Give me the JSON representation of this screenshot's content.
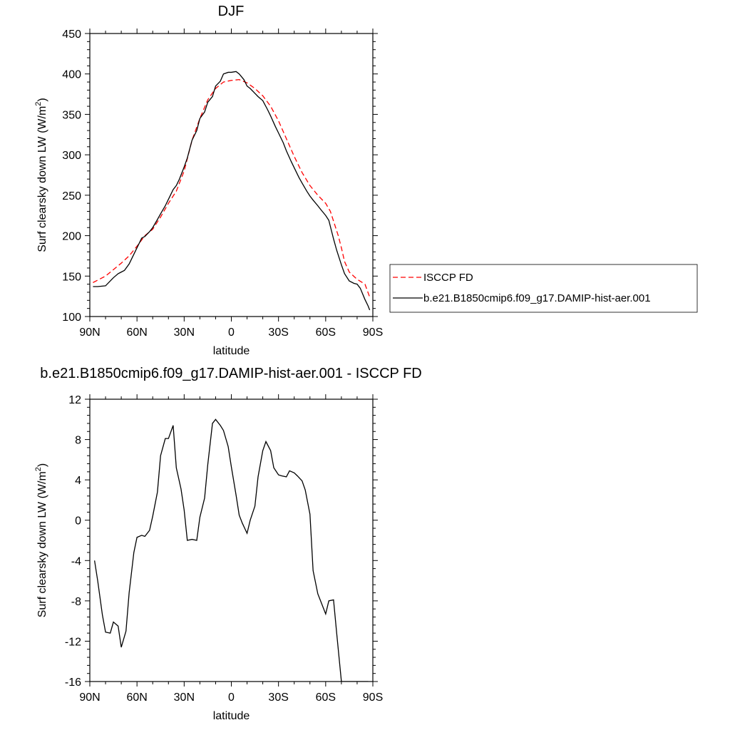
{
  "chart_data": [
    {
      "type": "line",
      "title": "DJF",
      "xlabel": "latitude",
      "ylabel": "Surf clearsky down LW (W/m",
      "ylabel_sup": "2",
      "ylabel_close": ")",
      "xlim": [
        90,
        -90
      ],
      "ylim": [
        100,
        450
      ],
      "xticks": [
        {
          "value": 90,
          "label": "90N"
        },
        {
          "value": 60,
          "label": "60N"
        },
        {
          "value": 30,
          "label": "30N"
        },
        {
          "value": 0,
          "label": "0"
        },
        {
          "value": -30,
          "label": "30S"
        },
        {
          "value": -60,
          "label": "60S"
        },
        {
          "value": -90,
          "label": "90S"
        }
      ],
      "yticks": [
        100,
        150,
        200,
        250,
        300,
        350,
        400,
        450
      ],
      "grid": false,
      "legend_position": "right",
      "series": [
        {
          "name": "ISCCP FD",
          "color": "#ff0000",
          "dash": "dashed",
          "x": [
            88,
            85,
            80,
            75,
            70,
            65,
            60,
            55,
            50,
            45,
            40,
            35,
            30,
            25,
            20,
            15,
            10,
            5,
            0,
            -5,
            -10,
            -15,
            -20,
            -25,
            -30,
            -35,
            -40,
            -45,
            -50,
            -55,
            -60,
            -63,
            -65,
            -68,
            -70,
            -72,
            -75,
            -80,
            -85,
            -88
          ],
          "y": [
            142,
            145,
            150,
            158,
            166,
            175,
            187,
            200,
            208,
            223,
            240,
            255,
            280,
            318,
            345,
            368,
            382,
            390,
            392,
            393,
            389,
            382,
            373,
            360,
            342,
            320,
            298,
            278,
            262,
            250,
            240,
            230,
            218,
            200,
            185,
            168,
            155,
            146,
            140,
            124
          ]
        },
        {
          "name": "b.e21.B1850cmip6.f09_g17.DAMIP-hist-aer.001",
          "color": "#000000",
          "dash": "solid",
          "x": [
            88,
            85,
            80,
            75,
            72,
            70,
            68,
            65,
            62,
            60,
            57,
            55,
            52,
            50,
            47,
            45,
            42,
            40,
            37,
            35,
            33,
            30,
            28,
            25,
            22,
            20,
            17,
            15,
            12,
            10,
            7,
            5,
            2,
            0,
            -3,
            -5,
            -8,
            -10,
            -12,
            -15,
            -17,
            -20,
            -23,
            -25,
            -28,
            -30,
            -33,
            -35,
            -38,
            -40,
            -43,
            -45,
            -48,
            -50,
            -52,
            -55,
            -57,
            -60,
            -62,
            -65,
            -67,
            -70,
            -72,
            -75,
            -78,
            -80,
            -82,
            -85,
            -87,
            -88
          ],
          "y": [
            137,
            137,
            138,
            148,
            153,
            155,
            157,
            165,
            177,
            185,
            197,
            199,
            205,
            210,
            220,
            227,
            237,
            245,
            257,
            262,
            270,
            285,
            296,
            318,
            330,
            345,
            353,
            365,
            372,
            385,
            391,
            400,
            402,
            402,
            403,
            400,
            393,
            385,
            382,
            376,
            372,
            367,
            356,
            348,
            335,
            327,
            315,
            305,
            292,
            284,
            272,
            265,
            255,
            249,
            244,
            237,
            232,
            225,
            219,
            196,
            182,
            164,
            153,
            144,
            141,
            140,
            135,
            121,
            113,
            108
          ]
        }
      ]
    },
    {
      "type": "line",
      "title": "b.e21.B1850cmip6.f09_g17.DAMIP-hist-aer.001 - ISCCP FD",
      "xlabel": "latitude",
      "ylabel": "Surf clearsky down LW (W/m",
      "ylabel_sup": "2",
      "ylabel_close": ")",
      "xlim": [
        90,
        -90
      ],
      "ylim": [
        -16,
        12
      ],
      "xticks": [
        {
          "value": 90,
          "label": "90N"
        },
        {
          "value": 60,
          "label": "60N"
        },
        {
          "value": 30,
          "label": "30N"
        },
        {
          "value": 0,
          "label": "0"
        },
        {
          "value": -30,
          "label": "30S"
        },
        {
          "value": -60,
          "label": "60S"
        },
        {
          "value": -90,
          "label": "90S"
        }
      ],
      "yticks": [
        -16,
        -12,
        -8,
        -4,
        0,
        4,
        8,
        12
      ],
      "grid": false,
      "series": [
        {
          "color": "#000000",
          "dash": "solid",
          "x": [
            87,
            85,
            82,
            80,
            77,
            75,
            72,
            70,
            67,
            65,
            62,
            60,
            57,
            55,
            52,
            50,
            47,
            45,
            42,
            40,
            37,
            35,
            32,
            30,
            28,
            25,
            22,
            20,
            17,
            15,
            12,
            10,
            7,
            5,
            2,
            0,
            -3,
            -5,
            -7,
            -10,
            -12,
            -15,
            -17,
            -20,
            -22,
            -25,
            -27,
            -30,
            -32,
            -35,
            -37,
            -40,
            -42,
            -45,
            -47,
            -50,
            -52,
            -55,
            -57,
            -60,
            -62,
            -65,
            -67,
            -70,
            -72,
            -75,
            -77,
            -80,
            -82,
            -85,
            -87
          ],
          "y": [
            -4.0,
            -6.0,
            -9.4,
            -11.1,
            -11.2,
            -10.1,
            -10.5,
            -12.6,
            -11.0,
            -7.2,
            -3.2,
            -1.7,
            -1.5,
            -1.6,
            -1.0,
            0.4,
            2.8,
            6.4,
            8.1,
            8.1,
            9.4,
            5.2,
            3.1,
            1.0,
            -2.0,
            -1.9,
            -2.0,
            0.3,
            2.2,
            5.5,
            9.6,
            10.0,
            9.4,
            8.9,
            7.3,
            5.3,
            2.5,
            0.5,
            -0.3,
            -1.3,
            0.0,
            1.4,
            4.3,
            6.9,
            7.8,
            6.9,
            5.2,
            4.5,
            4.4,
            4.3,
            4.9,
            4.7,
            4.4,
            3.9,
            3.0,
            0.6,
            -5.0,
            -7.3,
            -8.1,
            -9.3,
            -8.0,
            -7.9,
            -11.2,
            -16.0,
            -16.0,
            -16.0,
            -16.0,
            -16.0,
            -16.0,
            -16.0,
            -16.0
          ]
        }
      ]
    }
  ]
}
